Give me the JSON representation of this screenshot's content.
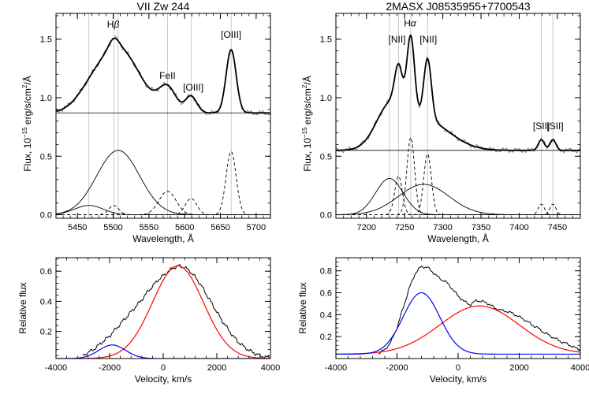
{
  "chart_data": [
    {
      "type": "line",
      "title": "VII Zw 244",
      "xlabel": "Wavelength, Å",
      "ylabel_main": "Flux, 10",
      "ylabel_exp": "−15",
      "ylabel_rest": " erg/s/cm",
      "ylabel_sq": "2",
      "ylabel_tail": "/Å",
      "xlim": [
        5420,
        5720
      ],
      "ylim": [
        -0.03,
        1.72
      ],
      "xticks": [
        5450,
        5500,
        5550,
        5600,
        5650,
        5700
      ],
      "yticks": [
        0.0,
        0.5,
        1.0,
        1.5
      ],
      "ytick_labels": [
        "0.0",
        "0.5",
        "1.0",
        "1.5"
      ],
      "baseline": 0.87,
      "vlines": [
        5466,
        5501,
        5507,
        5576,
        5609,
        5665
      ],
      "labels": [
        {
          "text": "H",
          "greek": "β",
          "x": 5500,
          "y": 1.6
        },
        {
          "text": "FeII",
          "greek": "",
          "x": 5576,
          "y": 1.16
        },
        {
          "text": "[OIII]",
          "greek": "",
          "x": 5612,
          "y": 1.06
        },
        {
          "text": "[OIII]",
          "greek": "",
          "x": 5665,
          "y": 1.51
        }
      ],
      "components_solid": [
        {
          "name": "hbeta-broad-1",
          "amp": 0.55,
          "center": 5507,
          "sigma": 30
        },
        {
          "name": "hbeta-broad-2",
          "amp": 0.08,
          "center": 5466,
          "sigma": 20
        }
      ],
      "components_dashed": [
        {
          "name": "hbeta-narrow",
          "amp": 0.08,
          "center": 5501,
          "sigma": 7
        },
        {
          "name": "feii",
          "amp": 0.2,
          "center": 5576,
          "sigma": 12
        },
        {
          "name": "oiii-weak",
          "amp": 0.14,
          "center": 5609,
          "sigma": 8
        },
        {
          "name": "oiii-strong",
          "amp": 0.54,
          "center": 5665,
          "sigma": 7
        }
      ]
    },
    {
      "type": "line",
      "title": "2MASX J08535955+7700543",
      "xlabel": "Wavelength, Å",
      "ylabel_main": "Flux, 10",
      "ylabel_exp": "−15",
      "ylabel_rest": " erg/s/cm",
      "ylabel_sq": "2",
      "ylabel_tail": "/Å",
      "xlim": [
        7160,
        7480
      ],
      "ylim": [
        -0.03,
        1.72
      ],
      "xticks": [
        7200,
        7250,
        7300,
        7350,
        7400,
        7450
      ],
      "yticks": [
        0.0,
        0.5,
        1.0,
        1.5
      ],
      "ytick_labels": [
        "0.0",
        "0.5",
        "1.0",
        "1.5"
      ],
      "baseline": 0.55,
      "vlines": [
        7230,
        7242,
        7258,
        7280,
        7429,
        7444
      ],
      "labels": [
        {
          "text": "[NII]",
          "greek": "",
          "x": 7240,
          "y": 1.47
        },
        {
          "text": "H",
          "greek": "α",
          "x": 7257,
          "y": 1.61
        },
        {
          "text": "[NII]",
          "greek": "",
          "x": 7281,
          "y": 1.47
        },
        {
          "text": "[SII]",
          "greek": "",
          "x": 7429,
          "y": 0.73
        },
        {
          "text": "[SII]",
          "greek": "",
          "x": 7447,
          "y": 0.73
        }
      ],
      "components_solid": [
        {
          "name": "halpha-broad-1",
          "amp": 0.26,
          "center": 7275,
          "sigma": 33
        },
        {
          "name": "halpha-broad-2",
          "amp": 0.31,
          "center": 7230,
          "sigma": 18
        }
      ],
      "components_dashed": [
        {
          "name": "nii-1",
          "amp": 0.33,
          "center": 7242,
          "sigma": 5
        },
        {
          "name": "halpha-narrow",
          "amp": 0.66,
          "center": 7258,
          "sigma": 5
        },
        {
          "name": "nii-2",
          "amp": 0.52,
          "center": 7280,
          "sigma": 5
        },
        {
          "name": "sii-1",
          "amp": 0.09,
          "center": 7429,
          "sigma": 4
        },
        {
          "name": "sii-2",
          "amp": 0.09,
          "center": 7444,
          "sigma": 4
        }
      ]
    },
    {
      "type": "line",
      "title": "",
      "xlabel": "Velocity, km/s",
      "ylabel": "Relative flux",
      "xlim": [
        -4000,
        4000
      ],
      "ylim": [
        0.02,
        0.69
      ],
      "xticks": [
        -4000,
        -2000,
        0,
        2000,
        4000
      ],
      "yticks": [
        0.2,
        0.4,
        0.6
      ],
      "ytick_labels": [
        "0.2",
        "0.4",
        "0.6"
      ],
      "red": {
        "amp": 0.615,
        "center": 550,
        "sigma": 950,
        "offset": 0.02
      },
      "blue": {
        "amp": 0.09,
        "center": -1900,
        "sigma": 500,
        "offset": 0.02
      },
      "profile": [
        [
          -3000,
          0.04
        ],
        [
          -2800,
          0.06
        ],
        [
          -2600,
          0.08
        ],
        [
          -2400,
          0.11
        ],
        [
          -2200,
          0.14
        ],
        [
          -2000,
          0.17
        ],
        [
          -1800,
          0.21
        ],
        [
          -1600,
          0.25
        ],
        [
          -1400,
          0.29
        ],
        [
          -1200,
          0.33
        ],
        [
          -1000,
          0.37
        ],
        [
          -800,
          0.41
        ],
        [
          -600,
          0.46
        ],
        [
          -400,
          0.5
        ],
        [
          -200,
          0.54
        ],
        [
          0,
          0.57
        ],
        [
          200,
          0.6
        ],
        [
          400,
          0.625
        ],
        [
          600,
          0.635
        ],
        [
          800,
          0.625
        ],
        [
          1000,
          0.6
        ],
        [
          1200,
          0.56
        ],
        [
          1400,
          0.51
        ],
        [
          1600,
          0.45
        ],
        [
          1800,
          0.39
        ],
        [
          2000,
          0.33
        ],
        [
          2200,
          0.27
        ],
        [
          2400,
          0.22
        ],
        [
          2600,
          0.17
        ],
        [
          2800,
          0.13
        ],
        [
          3000,
          0.1
        ],
        [
          3200,
          0.075
        ],
        [
          3400,
          0.055
        ],
        [
          3600,
          0.04
        ],
        [
          3800,
          0.03
        ],
        [
          4000,
          0.025
        ]
      ]
    },
    {
      "type": "line",
      "title": "",
      "xlabel": "Velocity, km/s",
      "ylabel": "Relative flux",
      "xlim": [
        -4000,
        4000
      ],
      "ylim": [
        0.0,
        0.92
      ],
      "xticks": [
        -4000,
        -2000,
        0,
        2000,
        4000
      ],
      "yticks": [
        0.2,
        0.4,
        0.6,
        0.8
      ],
      "ytick_labels": [
        "0.2",
        "0.4",
        "0.6",
        "0.8"
      ],
      "red": {
        "amp": 0.44,
        "center": 700,
        "sigma": 1300,
        "offset": 0.04
      },
      "blue": {
        "amp": 0.56,
        "center": -1200,
        "sigma": 600,
        "offset": 0.04
      },
      "profile": [
        [
          -2600,
          0.05
        ],
        [
          -2400,
          0.08
        ],
        [
          -2200,
          0.15
        ],
        [
          -2000,
          0.28
        ],
        [
          -1800,
          0.46
        ],
        [
          -1600,
          0.64
        ],
        [
          -1400,
          0.78
        ],
        [
          -1200,
          0.84
        ],
        [
          -1000,
          0.83
        ],
        [
          -800,
          0.78
        ],
        [
          -600,
          0.73
        ],
        [
          -400,
          0.7
        ],
        [
          -200,
          0.64
        ],
        [
          0,
          0.57
        ],
        [
          200,
          0.52
        ],
        [
          400,
          0.49
        ],
        [
          600,
          0.53
        ],
        [
          800,
          0.52
        ],
        [
          1000,
          0.5
        ],
        [
          1200,
          0.46
        ],
        [
          1400,
          0.44
        ],
        [
          1600,
          0.43
        ],
        [
          1800,
          0.41
        ],
        [
          2000,
          0.38
        ],
        [
          2200,
          0.35
        ],
        [
          2400,
          0.31
        ],
        [
          2600,
          0.28
        ],
        [
          2800,
          0.24
        ],
        [
          3000,
          0.21
        ],
        [
          3200,
          0.18
        ],
        [
          3400,
          0.15
        ],
        [
          3600,
          0.13
        ],
        [
          3800,
          0.1
        ],
        [
          4000,
          0.08
        ]
      ]
    }
  ]
}
